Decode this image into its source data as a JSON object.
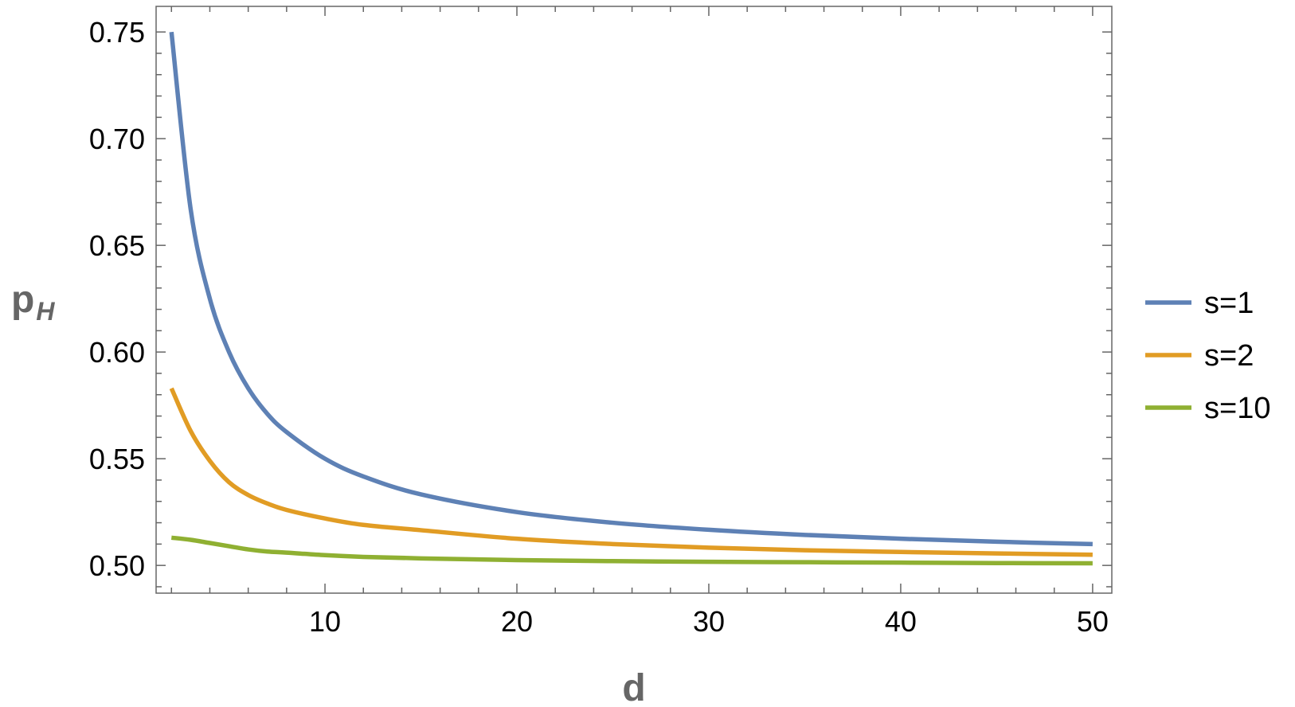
{
  "chart_data": {
    "type": "line",
    "xlabel": "d",
    "ylabel_main": "p",
    "ylabel_sub": "H",
    "xlim": [
      1.2,
      51
    ],
    "ylim": [
      0.487,
      0.762
    ],
    "xticks": [
      10,
      20,
      30,
      40,
      50
    ],
    "xtick_labels": [
      "10",
      "20",
      "30",
      "40",
      "50"
    ],
    "yticks": [
      0.5,
      0.55,
      0.6,
      0.65,
      0.7,
      0.75
    ],
    "ytick_labels": [
      "0.50",
      "0.55",
      "0.60",
      "0.65",
      "0.70",
      "0.75"
    ],
    "grid": false,
    "legend_position": "right",
    "series": [
      {
        "name": "s=1",
        "color": "#5e81b5",
        "x": [
          2,
          3,
          4,
          5,
          6,
          7,
          8,
          10,
          12,
          15,
          20,
          25,
          30,
          35,
          40,
          45,
          50
        ],
        "y": [
          0.75,
          0.667,
          0.625,
          0.6,
          0.583,
          0.571,
          0.5625,
          0.55,
          0.5417,
          0.5333,
          0.525,
          0.52,
          0.5167,
          0.5143,
          0.5125,
          0.5111,
          0.51
        ]
      },
      {
        "name": "s=2",
        "color": "#e19c24",
        "x": [
          2,
          3,
          4,
          5,
          6,
          7,
          8,
          10,
          12,
          15,
          20,
          25,
          30,
          35,
          40,
          45,
          50
        ],
        "y": [
          0.583,
          0.563,
          0.549,
          0.539,
          0.533,
          0.529,
          0.526,
          0.522,
          0.519,
          0.5165,
          0.5125,
          0.51,
          0.5083,
          0.5071,
          0.5063,
          0.5056,
          0.505
        ]
      },
      {
        "name": "s=10",
        "color": "#8fb032",
        "x": [
          2,
          3,
          4,
          5,
          6,
          7,
          8,
          10,
          12,
          15,
          20,
          25,
          30,
          35,
          40,
          45,
          50
        ],
        "y": [
          0.513,
          0.512,
          0.5105,
          0.509,
          0.5075,
          0.5065,
          0.506,
          0.5048,
          0.504,
          0.5033,
          0.5025,
          0.502,
          0.5017,
          0.5015,
          0.5013,
          0.5011,
          0.501
        ]
      }
    ]
  }
}
